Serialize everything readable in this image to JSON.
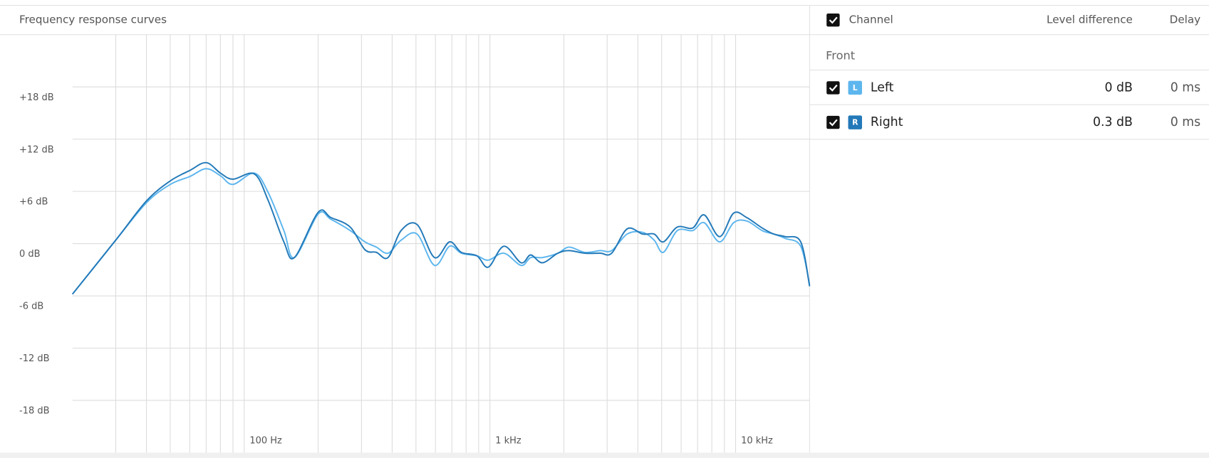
{
  "chart_data": {
    "type": "line",
    "title": "Frequency response curves",
    "xscale": "log",
    "xlim": [
      20,
      20000
    ],
    "xticks": [
      {
        "value": 100,
        "label": "100 Hz"
      },
      {
        "value": 1000,
        "label": "1 kHz"
      },
      {
        "value": 10000,
        "label": "10 kHz"
      }
    ],
    "xgrid": [
      30,
      40,
      50,
      60,
      70,
      80,
      90,
      200,
      300,
      400,
      500,
      600,
      700,
      800,
      900,
      2000,
      3000,
      4000,
      5000,
      6000,
      7000,
      8000,
      9000
    ],
    "ylim": [
      -24,
      24
    ],
    "yticks": [
      {
        "value": 18,
        "label": "+18 dB"
      },
      {
        "value": 12,
        "label": "+12 dB"
      },
      {
        "value": 6,
        "label": "+6 dB"
      },
      {
        "value": 0,
        "label": "0 dB"
      },
      {
        "value": -6,
        "label": "-6 dB"
      },
      {
        "value": -12,
        "label": "-12 dB"
      },
      {
        "value": -18,
        "label": "-18 dB"
      }
    ],
    "grid": true,
    "x": [
      20,
      30,
      40,
      50,
      60,
      70,
      80,
      90,
      110,
      125,
      145,
      160,
      200,
      225,
      270,
      310,
      345,
      385,
      435,
      505,
      595,
      685,
      765,
      885,
      985,
      1140,
      1340,
      1465,
      1635,
      1890,
      2100,
      2430,
      2810,
      3130,
      3620,
      4180,
      4660,
      5080,
      5790,
      6690,
      7450,
      8610,
      9810,
      11090,
      12820,
      14290,
      15920,
      18400,
      20000
    ],
    "series": [
      {
        "name": "Left",
        "color": "#5db6ee",
        "values": [
          -5.8,
          0.4,
          4.7,
          6.8,
          7.7,
          8.6,
          7.8,
          6.8,
          8.1,
          5.9,
          1.5,
          -1.6,
          3.4,
          2.8,
          1.5,
          0.2,
          -0.4,
          -1.1,
          0.4,
          1.1,
          -2.5,
          -0.3,
          -1.1,
          -1.4,
          -1.9,
          -1.1,
          -2.5,
          -1.6,
          -1.6,
          -1.1,
          -0.4,
          -1.0,
          -0.8,
          -0.8,
          1.1,
          1.3,
          0.4,
          -1.0,
          1.5,
          1.5,
          2.4,
          0.2,
          2.4,
          2.6,
          1.5,
          1.1,
          0.6,
          -0.3,
          -4.7
        ]
      },
      {
        "name": "Right",
        "color": "#2379b8",
        "values": [
          -5.8,
          0.4,
          4.9,
          7.2,
          8.4,
          9.3,
          8.1,
          7.4,
          8.0,
          5.0,
          0.2,
          -1.6,
          3.6,
          3.0,
          1.9,
          -0.7,
          -1.0,
          -1.6,
          1.5,
          2.2,
          -1.6,
          0.2,
          -1.0,
          -1.4,
          -2.7,
          -0.3,
          -2.2,
          -1.3,
          -2.2,
          -1.1,
          -0.8,
          -1.1,
          -1.1,
          -1.1,
          1.7,
          1.1,
          1.1,
          0.2,
          1.9,
          1.8,
          3.3,
          0.8,
          3.5,
          3.0,
          1.8,
          1.1,
          0.8,
          0.2,
          -4.9
        ]
      }
    ]
  },
  "table": {
    "header": [
      "Channel",
      "Level difference",
      "Delay"
    ],
    "group": "Front",
    "rows": [
      {
        "badge": "L",
        "channel": "Left",
        "level": "0 dB",
        "delay": "0 ms"
      },
      {
        "badge": "R",
        "channel": "Right",
        "level": "0.3 dB",
        "delay": "0 ms"
      }
    ]
  }
}
